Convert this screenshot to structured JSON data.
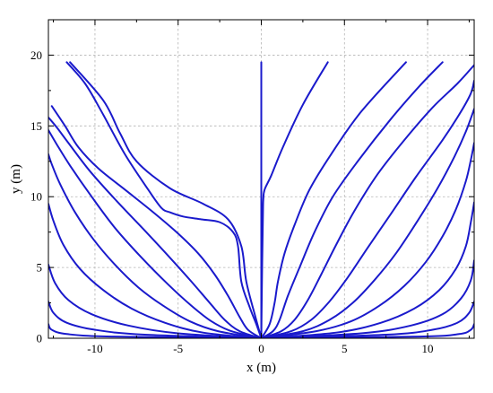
{
  "chart_data": {
    "type": "line",
    "title": "",
    "xlabel": "x (m)",
    "ylabel": "y (m)",
    "xlim": [
      -12.8,
      12.8
    ],
    "ylim": [
      0,
      22.5
    ],
    "x_ticks": [
      -10,
      -5,
      0,
      5,
      10
    ],
    "y_ticks": [
      0,
      5,
      10,
      15,
      20
    ],
    "x_tick_labels": [
      "-10",
      "-5",
      "0",
      "5",
      "10"
    ],
    "y_tick_labels": [
      "0",
      "5",
      "10",
      "15",
      "20"
    ],
    "grid": true,
    "legend": "none",
    "line_color": "#1a1acc",
    "series": [
      {
        "points": [
          [
            0,
            0
          ],
          [
            0,
            19.5
          ]
        ]
      },
      {
        "points": [
          [
            0,
            0
          ],
          [
            -0.35,
            1.5
          ],
          [
            -0.9,
            4
          ],
          [
            -1.2,
            6.5
          ],
          [
            -2,
            8.4
          ],
          [
            -3.5,
            9.5
          ],
          [
            -5.5,
            10.6
          ],
          [
            -7.5,
            12.5
          ],
          [
            -8.5,
            14.5
          ],
          [
            -9.5,
            16.8
          ],
          [
            -11.5,
            19.5
          ]
        ]
      },
      {
        "points": [
          [
            0,
            0
          ],
          [
            0.05,
            5
          ],
          [
            0.1,
            8.8
          ],
          [
            0.12,
            9.8
          ],
          [
            0.2,
            10.5
          ],
          [
            0.6,
            11.5
          ],
          [
            1.3,
            13.5
          ],
          [
            2.5,
            16.5
          ],
          [
            4,
            19.5
          ]
        ]
      },
      {
        "points": [
          [
            0,
            0
          ],
          [
            -0.3,
            1
          ],
          [
            -0.7,
            2.2
          ],
          [
            -1.2,
            4
          ],
          [
            -1.4,
            6.5
          ],
          [
            -1.7,
            7.5
          ],
          [
            -2.5,
            8.2
          ],
          [
            -3.6,
            8.4
          ],
          [
            -4.7,
            8.6
          ],
          [
            -5.5,
            8.9
          ],
          [
            -6,
            9.2
          ],
          [
            -6.8,
            10.5
          ],
          [
            -8.2,
            13
          ],
          [
            -9.6,
            16
          ],
          [
            -10.6,
            18
          ],
          [
            -11.7,
            19.5
          ]
        ]
      },
      {
        "points": [
          [
            0,
            0
          ],
          [
            0.5,
            1
          ],
          [
            0.8,
            2.5
          ],
          [
            1,
            4
          ],
          [
            1.4,
            6
          ],
          [
            2,
            8
          ],
          [
            2.9,
            10.5
          ],
          [
            4.2,
            13
          ],
          [
            6,
            16
          ],
          [
            8.7,
            19.5
          ]
        ]
      },
      {
        "points": [
          [
            0,
            0
          ],
          [
            0.7,
            0.5
          ],
          [
            1.1,
            1.3
          ],
          [
            1.6,
            3
          ],
          [
            2.3,
            5
          ],
          [
            3.2,
            7.5
          ],
          [
            4.3,
            10
          ],
          [
            5.8,
            12.5
          ],
          [
            7.8,
            15.5
          ],
          [
            9.5,
            17.8
          ],
          [
            10.9,
            19.5
          ]
        ]
      },
      {
        "points": [
          [
            0,
            0
          ],
          [
            -0.8,
            0.6
          ],
          [
            -1.3,
            1.5
          ],
          [
            -2,
            3
          ],
          [
            -2.8,
            4.5
          ],
          [
            -3.8,
            6
          ],
          [
            -5.1,
            7.5
          ],
          [
            -6.6,
            9
          ],
          [
            -8.2,
            10.5
          ],
          [
            -9.8,
            12
          ],
          [
            -11,
            13.5
          ],
          [
            -11.8,
            15
          ],
          [
            -12.6,
            16.4
          ]
        ]
      },
      {
        "points": [
          [
            0,
            0
          ],
          [
            1.2,
            0.5
          ],
          [
            2,
            1.3
          ],
          [
            2.8,
            2.7
          ],
          [
            3.6,
            4.5
          ],
          [
            4.5,
            6.6
          ],
          [
            5.6,
            9
          ],
          [
            7,
            11.6
          ],
          [
            8.6,
            14
          ],
          [
            10.3,
            16.3
          ],
          [
            11.8,
            18
          ],
          [
            12.8,
            19.3
          ]
        ]
      },
      {
        "points": [
          [
            0,
            0
          ],
          [
            -1.3,
            0.5
          ],
          [
            -2.2,
            1.3
          ],
          [
            -3.1,
            2.5
          ],
          [
            -4.2,
            4
          ],
          [
            -5.5,
            5.7
          ],
          [
            -7,
            7.6
          ],
          [
            -8.7,
            9.7
          ],
          [
            -10.3,
            11.8
          ],
          [
            -11.6,
            13.8
          ],
          [
            -12.3,
            14.9
          ],
          [
            -12.8,
            15.6
          ]
        ]
      },
      {
        "points": [
          [
            0,
            0
          ],
          [
            1.8,
            0.5
          ],
          [
            3,
            1.3
          ],
          [
            4.1,
            2.6
          ],
          [
            5.2,
            4.3
          ],
          [
            6.4,
            6.4
          ],
          [
            7.8,
            8.8
          ],
          [
            9.3,
            11.4
          ],
          [
            10.9,
            14
          ],
          [
            12,
            16
          ],
          [
            12.6,
            17.3
          ],
          [
            12.8,
            18.2
          ]
        ]
      },
      {
        "points": [
          [
            0,
            0
          ],
          [
            -1.8,
            0.5
          ],
          [
            -3,
            1.2
          ],
          [
            -4.2,
            2.3
          ],
          [
            -5.6,
            3.8
          ],
          [
            -7.2,
            5.7
          ],
          [
            -8.8,
            7.8
          ],
          [
            -10.2,
            10
          ],
          [
            -11.5,
            12.2
          ],
          [
            -12.3,
            13.7
          ],
          [
            -12.8,
            14.7
          ]
        ]
      },
      {
        "points": [
          [
            0,
            0
          ],
          [
            2.5,
            0.5
          ],
          [
            4.1,
            1.3
          ],
          [
            5.5,
            2.5
          ],
          [
            6.8,
            4.1
          ],
          [
            8.1,
            6
          ],
          [
            9.4,
            8.3
          ],
          [
            10.6,
            10.6
          ],
          [
            11.6,
            12.8
          ],
          [
            12.3,
            14.6
          ],
          [
            12.8,
            16.2
          ]
        ]
      },
      {
        "points": [
          [
            0,
            0
          ],
          [
            -2.6,
            0.5
          ],
          [
            -4.3,
            1.2
          ],
          [
            -5.9,
            2.3
          ],
          [
            -7.4,
            3.6
          ],
          [
            -8.8,
            5.2
          ],
          [
            -10.1,
            7
          ],
          [
            -11.2,
            8.9
          ],
          [
            -12.1,
            10.9
          ],
          [
            -12.6,
            12.3
          ],
          [
            -12.8,
            13
          ]
        ]
      },
      {
        "points": [
          [
            0,
            0
          ],
          [
            3.3,
            0.5
          ],
          [
            5.4,
            1.2
          ],
          [
            7.1,
            2.3
          ],
          [
            8.6,
            3.7
          ],
          [
            9.9,
            5.4
          ],
          [
            10.9,
            7.2
          ],
          [
            11.7,
            9.1
          ],
          [
            12.3,
            11.1
          ],
          [
            12.6,
            12.6
          ],
          [
            12.8,
            13.8
          ]
        ]
      },
      {
        "points": [
          [
            0,
            0
          ],
          [
            -3.5,
            0.4
          ],
          [
            -5.8,
            1.1
          ],
          [
            -7.8,
            2.1
          ],
          [
            -9.5,
            3.4
          ],
          [
            -10.9,
            4.9
          ],
          [
            -11.9,
            6.6
          ],
          [
            -12.5,
            8.3
          ],
          [
            -12.8,
            9.5
          ]
        ]
      },
      {
        "points": [
          [
            0,
            0
          ],
          [
            4.5,
            0.4
          ],
          [
            7.2,
            1.1
          ],
          [
            9.2,
            2.1
          ],
          [
            10.7,
            3.4
          ],
          [
            11.7,
            4.9
          ],
          [
            12.3,
            6.5
          ],
          [
            12.6,
            8.2
          ],
          [
            12.8,
            9.6
          ]
        ]
      },
      {
        "points": [
          [
            0,
            0
          ],
          [
            -5,
            0.35
          ],
          [
            -8,
            0.9
          ],
          [
            -10.2,
            1.7
          ],
          [
            -11.6,
            2.7
          ],
          [
            -12.4,
            3.9
          ],
          [
            -12.8,
            5.2
          ]
        ]
      },
      {
        "points": [
          [
            0,
            0
          ],
          [
            6,
            0.35
          ],
          [
            9,
            0.9
          ],
          [
            10.9,
            1.7
          ],
          [
            12,
            2.8
          ],
          [
            12.6,
            4.1
          ],
          [
            12.8,
            5.5
          ]
        ]
      },
      {
        "points": [
          [
            0,
            0
          ],
          [
            -7,
            0.25
          ],
          [
            -10,
            0.6
          ],
          [
            -11.7,
            1.1
          ],
          [
            -12.5,
            1.8
          ],
          [
            -12.8,
            2.6
          ]
        ]
      },
      {
        "points": [
          [
            0,
            0
          ],
          [
            7.5,
            0.25
          ],
          [
            10.3,
            0.6
          ],
          [
            11.8,
            1.1
          ],
          [
            12.5,
            1.8
          ],
          [
            12.8,
            2.6
          ]
        ]
      },
      {
        "points": [
          [
            0,
            0
          ],
          [
            -9,
            0.12
          ],
          [
            -11.7,
            0.3
          ],
          [
            -12.6,
            0.6
          ],
          [
            -12.8,
            1
          ]
        ]
      },
      {
        "points": [
          [
            0,
            0
          ],
          [
            9.5,
            0.12
          ],
          [
            11.9,
            0.3
          ],
          [
            12.6,
            0.6
          ],
          [
            12.8,
            1
          ]
        ]
      }
    ]
  }
}
